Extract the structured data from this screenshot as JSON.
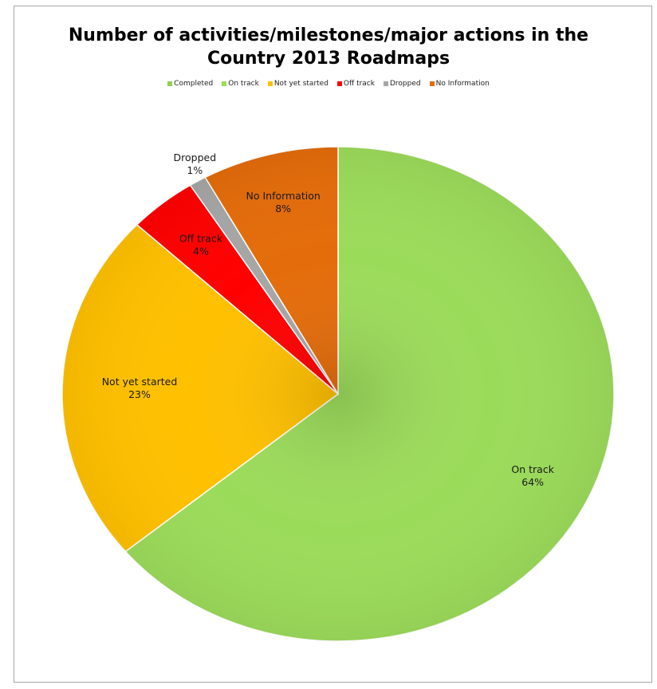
{
  "chart_data": {
    "type": "pie",
    "title_lines": [
      "Number of activities/milestones/major actions in the",
      "Country 2013 Roadmaps"
    ],
    "legend_position": "top",
    "categories": [
      "Completed",
      "On track",
      "Not yet started",
      "Off track",
      "Dropped",
      "No Information"
    ],
    "values": [
      0,
      64,
      23,
      4,
      1,
      8
    ],
    "value_labels": [
      "",
      "64%",
      "23%",
      "4%",
      "1%",
      "8%"
    ],
    "colors": [
      "#92d050",
      "#9bdb5a",
      "#ffc000",
      "#ff0000",
      "#a6a6a6",
      "#e46c0a"
    ]
  }
}
